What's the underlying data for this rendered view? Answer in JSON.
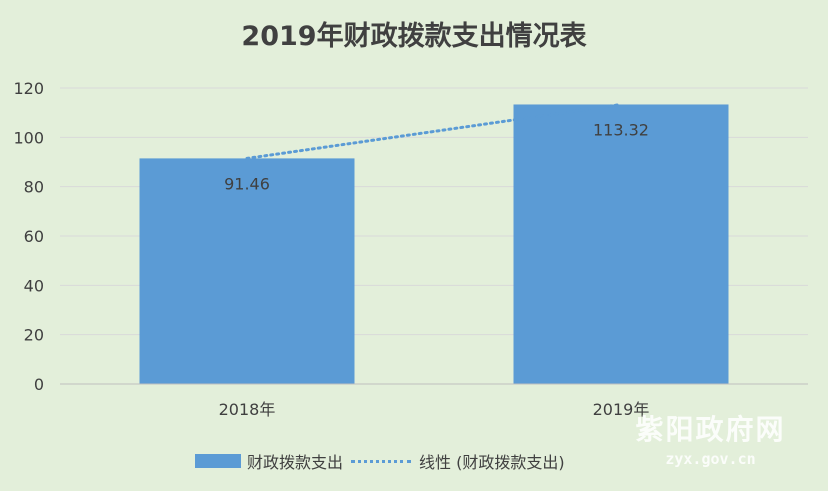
{
  "chart_data": {
    "type": "bar",
    "title": "2019年财政拨款支出情况表",
    "categories": [
      "2018年",
      "2019年"
    ],
    "series": [
      {
        "name": "财政拨款支出",
        "values": [
          91.46,
          113.32
        ],
        "color": "#5b9bd5"
      }
    ],
    "trendline": {
      "name": "线性 (财政拨款支出)",
      "type": "linear",
      "color": "#5b9bd5"
    },
    "data_labels": [
      "91.46",
      "113.32"
    ],
    "ylim": [
      0,
      120
    ],
    "yticks": [
      0,
      20,
      40,
      60,
      80,
      100,
      120
    ],
    "xlabel": "",
    "ylabel": "",
    "grid": true,
    "legend_position": "bottom"
  },
  "watermark": {
    "name": "紫阳政府网",
    "url": "zyx.gov.cn"
  },
  "colors": {
    "background": "#e3efda",
    "gridline": "#d9d9d9",
    "text": "#404040"
  }
}
